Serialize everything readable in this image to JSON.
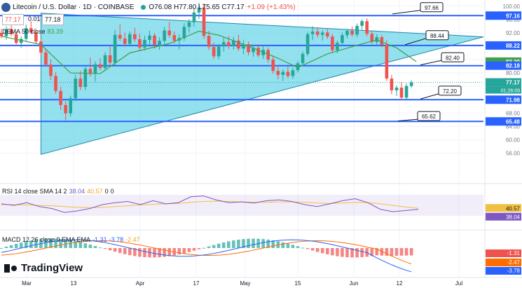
{
  "header": {
    "symbol": "Litecoin / U.S. Dollar · 1D · COINBASE",
    "ohlc": "O76.08 H77.80 L75.65 C77.17",
    "change": "+1.09 (+1.43%)",
    "price_box_1": "77.17",
    "price_box_gap": "0.01",
    "price_box_2": "77.18",
    "dema": "DEMA 50 close",
    "dema_value": "83.39"
  },
  "rsi_legend": {
    "label": "RSI 14 close SMA 14 2",
    "v1": "38.04",
    "v2": "40.57",
    "v3": "0",
    "v4": "0"
  },
  "macd_legend": {
    "label": "MACD 12 26 close 9 EMA EMA",
    "v1": "-1.31",
    "v2": "-3.78",
    "v3": "-2.47"
  },
  "brand": "TradingView",
  "colors": {
    "up": "#26a69a",
    "down": "#ef5350",
    "line": "#2962ff",
    "triangle": "#6fd6e8",
    "dema": "#43a047",
    "rsi": "#7e57c2",
    "rsi_ma": "#f0c040",
    "macd": "#2962ff",
    "signal": "#ff6d00"
  },
  "chart_data": {
    "type": "candlestick",
    "price_axis": {
      "ticks": [
        100,
        96,
        92,
        88,
        84,
        80,
        76,
        72,
        68,
        64,
        60,
        56
      ],
      "range": [
        54,
        101
      ]
    },
    "time_axis": [
      "Mar",
      "13",
      "Apr",
      "17",
      "May",
      "15",
      "Jun",
      "12",
      "Jul"
    ],
    "horizontal_levels": [
      97.16,
      88.22,
      82.18,
      71.98,
      65.48
    ],
    "price_labels": [
      {
        "value": 97.16,
        "text": "97.16"
      },
      {
        "value": 88.22,
        "text": "88.22"
      },
      {
        "value": 83.39,
        "text": "83.39",
        "role": "dema"
      },
      {
        "value": 82.18,
        "text": "82.18"
      },
      {
        "value": 77.17,
        "text": "77.17",
        "role": "last"
      },
      {
        "value": 71.98,
        "text": "71.98"
      },
      {
        "value": 65.48,
        "text": "65.48"
      }
    ],
    "last_price": 77.17,
    "countdown": "01:26:09",
    "callouts": [
      "97.66",
      "88.44",
      "82.40",
      "72.20",
      "65.62"
    ],
    "candles": [
      [
        92.0,
        93.2,
        90.4,
        91.0
      ],
      [
        91.0,
        94.0,
        89.9,
        93.1
      ],
      [
        93.1,
        94.4,
        91.0,
        91.6
      ],
      [
        91.6,
        92.4,
        88.1,
        89.0
      ],
      [
        89.0,
        91.0,
        87.5,
        90.2
      ],
      [
        90.2,
        94.5,
        89.4,
        93.4
      ],
      [
        93.4,
        95.5,
        91.7,
        92.1
      ],
      [
        92.1,
        93.3,
        88.7,
        89.4
      ],
      [
        89.4,
        90.1,
        85.2,
        86.1
      ],
      [
        86.1,
        87.3,
        81.8,
        82.5
      ],
      [
        82.5,
        84.1,
        77.9,
        79.1
      ],
      [
        79.1,
        80.2,
        73.8,
        74.6
      ],
      [
        74.6,
        75.8,
        68.9,
        70.4
      ],
      [
        70.4,
        71.6,
        65.8,
        67.9
      ],
      [
        67.9,
        73.2,
        66.9,
        72.4
      ],
      [
        72.4,
        79.5,
        71.6,
        78.3
      ],
      [
        78.3,
        80.6,
        74.9,
        75.8
      ],
      [
        75.8,
        82.1,
        74.8,
        81.2
      ],
      [
        81.2,
        84.6,
        78.9,
        79.7
      ],
      [
        79.7,
        83.5,
        77.4,
        82.6
      ],
      [
        82.6,
        84.4,
        80.8,
        81.5
      ],
      [
        81.5,
        86.2,
        80.6,
        85.3
      ],
      [
        85.3,
        88.1,
        82.4,
        83.1
      ],
      [
        83.1,
        92.9,
        82.2,
        91.4
      ],
      [
        91.4,
        94.5,
        89.6,
        90.3
      ],
      [
        90.3,
        92.1,
        87.8,
        88.7
      ],
      [
        88.7,
        92.4,
        87.9,
        91.6
      ],
      [
        91.6,
        93.5,
        89.2,
        90.1
      ],
      [
        90.1,
        91.8,
        86.5,
        87.6
      ],
      [
        87.6,
        91.2,
        86.7,
        89.9
      ],
      [
        89.9,
        92.6,
        88.4,
        91.2
      ],
      [
        91.2,
        91.9,
        87.3,
        88.4
      ],
      [
        88.4,
        90.7,
        86.9,
        89.6
      ],
      [
        89.6,
        93.8,
        88.7,
        92.7
      ],
      [
        92.7,
        95.2,
        90.5,
        91.3
      ],
      [
        91.3,
        92.4,
        88.8,
        89.7
      ],
      [
        89.7,
        91.5,
        87.1,
        90.4
      ],
      [
        90.4,
        94.9,
        89.6,
        93.8
      ],
      [
        93.8,
        96.1,
        92.1,
        95.2
      ],
      [
        95.2,
        99.4,
        93.9,
        98.1
      ],
      [
        98.1,
        101.0,
        96.2,
        99.6
      ],
      [
        99.6,
        100.8,
        90.2,
        91.1
      ],
      [
        91.1,
        92.6,
        86.9,
        87.8
      ],
      [
        87.8,
        89.1,
        84.2,
        85.0
      ],
      [
        85.0,
        88.7,
        84.1,
        87.9
      ],
      [
        87.9,
        90.6,
        86.4,
        89.2
      ],
      [
        89.2,
        91.0,
        87.2,
        88.1
      ],
      [
        88.1,
        90.8,
        87.0,
        89.7
      ],
      [
        89.7,
        91.4,
        86.6,
        87.3
      ],
      [
        87.3,
        89.8,
        85.6,
        88.6
      ],
      [
        88.6,
        89.4,
        85.3,
        86.2
      ],
      [
        86.2,
        88.5,
        84.9,
        87.5
      ],
      [
        87.5,
        88.6,
        84.7,
        85.3
      ],
      [
        85.3,
        87.9,
        84.2,
        86.9
      ],
      [
        86.9,
        87.6,
        83.1,
        84.0
      ],
      [
        84.0,
        85.2,
        79.8,
        80.6
      ],
      [
        80.6,
        82.3,
        78.1,
        79.4
      ],
      [
        79.4,
        81.1,
        77.6,
        80.3
      ],
      [
        80.3,
        81.9,
        78.4,
        79.1
      ],
      [
        79.1,
        81.6,
        78.2,
        80.8
      ],
      [
        80.8,
        83.5,
        80.1,
        82.9
      ],
      [
        82.9,
        86.4,
        82.1,
        85.7
      ],
      [
        85.7,
        92.3,
        85.0,
        91.6
      ],
      [
        91.6,
        94.0,
        89.8,
        92.4
      ],
      [
        92.4,
        93.7,
        90.6,
        91.4
      ],
      [
        91.4,
        92.8,
        89.7,
        92.1
      ],
      [
        92.1,
        93.3,
        90.2,
        90.9
      ],
      [
        90.9,
        91.7,
        86.1,
        86.8
      ],
      [
        86.8,
        89.7,
        85.9,
        89.0
      ],
      [
        89.0,
        92.1,
        88.2,
        91.3
      ],
      [
        91.3,
        93.2,
        90.4,
        92.6
      ],
      [
        92.6,
        93.9,
        90.9,
        91.5
      ],
      [
        91.5,
        94.8,
        90.7,
        94.1
      ],
      [
        94.1,
        96.0,
        92.9,
        95.5
      ],
      [
        95.5,
        96.3,
        91.0,
        91.7
      ],
      [
        91.7,
        92.5,
        88.6,
        89.3
      ],
      [
        89.3,
        91.6,
        88.1,
        90.7
      ],
      [
        90.7,
        91.3,
        87.7,
        88.4
      ],
      [
        88.4,
        89.8,
        77.6,
        78.3
      ],
      [
        78.3,
        79.4,
        73.6,
        74.8
      ],
      [
        74.8,
        76.2,
        73.1,
        75.6
      ],
      [
        75.6,
        77.3,
        71.9,
        72.6
      ],
      [
        72.6,
        76.9,
        72.1,
        76.1
      ],
      [
        76.1,
        77.8,
        75.65,
        77.17
      ]
    ],
    "dema_50": [
      [
        0,
        91.0
      ],
      [
        8,
        88.5
      ],
      [
        14,
        80.0
      ],
      [
        20,
        79.8
      ],
      [
        26,
        86.0
      ],
      [
        34,
        88.8
      ],
      [
        40,
        92.5
      ],
      [
        44,
        91.3
      ],
      [
        50,
        88.0
      ],
      [
        56,
        84.4
      ],
      [
        60,
        81.6
      ],
      [
        66,
        85.7
      ],
      [
        72,
        88.3
      ],
      [
        76,
        89.9
      ],
      [
        80,
        87.5
      ],
      [
        84,
        83.39
      ]
    ],
    "rsi": {
      "range": [
        0,
        100
      ],
      "last": 38.04,
      "ma_last": 40.57
    },
    "macd": {
      "last_macd": -3.78,
      "last_signal": -2.47,
      "last_hist": -1.31
    }
  }
}
